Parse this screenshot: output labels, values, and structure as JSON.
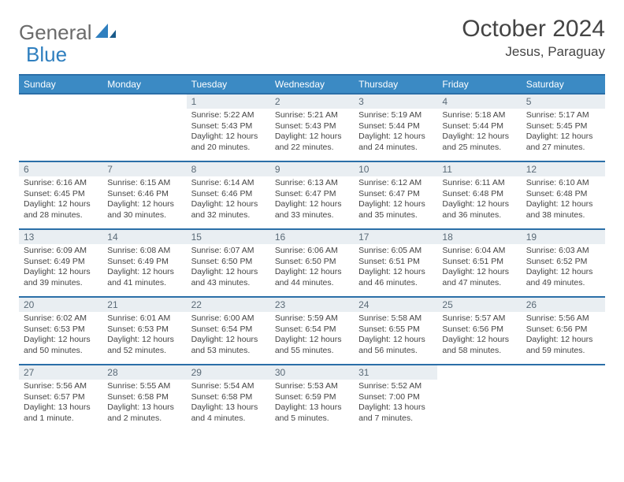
{
  "brand": {
    "part1": "General",
    "part2": "Blue"
  },
  "title": "October 2024",
  "location": "Jesus, Paraguay",
  "colors": {
    "header_bg": "#3b8ac4",
    "header_border": "#2b6fa8",
    "daynum_bg": "#e9eef2",
    "text": "#444444",
    "logo_gray": "#6b6b6b",
    "logo_blue": "#2f7fbf"
  },
  "weekdays": [
    "Sunday",
    "Monday",
    "Tuesday",
    "Wednesday",
    "Thursday",
    "Friday",
    "Saturday"
  ],
  "weeks": [
    [
      {
        "n": "",
        "sunrise": "",
        "sunset": "",
        "daylight": ""
      },
      {
        "n": "",
        "sunrise": "",
        "sunset": "",
        "daylight": ""
      },
      {
        "n": "1",
        "sunrise": "Sunrise: 5:22 AM",
        "sunset": "Sunset: 5:43 PM",
        "daylight": "Daylight: 12 hours and 20 minutes."
      },
      {
        "n": "2",
        "sunrise": "Sunrise: 5:21 AM",
        "sunset": "Sunset: 5:43 PM",
        "daylight": "Daylight: 12 hours and 22 minutes."
      },
      {
        "n": "3",
        "sunrise": "Sunrise: 5:19 AM",
        "sunset": "Sunset: 5:44 PM",
        "daylight": "Daylight: 12 hours and 24 minutes."
      },
      {
        "n": "4",
        "sunrise": "Sunrise: 5:18 AM",
        "sunset": "Sunset: 5:44 PM",
        "daylight": "Daylight: 12 hours and 25 minutes."
      },
      {
        "n": "5",
        "sunrise": "Sunrise: 5:17 AM",
        "sunset": "Sunset: 5:45 PM",
        "daylight": "Daylight: 12 hours and 27 minutes."
      }
    ],
    [
      {
        "n": "6",
        "sunrise": "Sunrise: 6:16 AM",
        "sunset": "Sunset: 6:45 PM",
        "daylight": "Daylight: 12 hours and 28 minutes."
      },
      {
        "n": "7",
        "sunrise": "Sunrise: 6:15 AM",
        "sunset": "Sunset: 6:46 PM",
        "daylight": "Daylight: 12 hours and 30 minutes."
      },
      {
        "n": "8",
        "sunrise": "Sunrise: 6:14 AM",
        "sunset": "Sunset: 6:46 PM",
        "daylight": "Daylight: 12 hours and 32 minutes."
      },
      {
        "n": "9",
        "sunrise": "Sunrise: 6:13 AM",
        "sunset": "Sunset: 6:47 PM",
        "daylight": "Daylight: 12 hours and 33 minutes."
      },
      {
        "n": "10",
        "sunrise": "Sunrise: 6:12 AM",
        "sunset": "Sunset: 6:47 PM",
        "daylight": "Daylight: 12 hours and 35 minutes."
      },
      {
        "n": "11",
        "sunrise": "Sunrise: 6:11 AM",
        "sunset": "Sunset: 6:48 PM",
        "daylight": "Daylight: 12 hours and 36 minutes."
      },
      {
        "n": "12",
        "sunrise": "Sunrise: 6:10 AM",
        "sunset": "Sunset: 6:48 PM",
        "daylight": "Daylight: 12 hours and 38 minutes."
      }
    ],
    [
      {
        "n": "13",
        "sunrise": "Sunrise: 6:09 AM",
        "sunset": "Sunset: 6:49 PM",
        "daylight": "Daylight: 12 hours and 39 minutes."
      },
      {
        "n": "14",
        "sunrise": "Sunrise: 6:08 AM",
        "sunset": "Sunset: 6:49 PM",
        "daylight": "Daylight: 12 hours and 41 minutes."
      },
      {
        "n": "15",
        "sunrise": "Sunrise: 6:07 AM",
        "sunset": "Sunset: 6:50 PM",
        "daylight": "Daylight: 12 hours and 43 minutes."
      },
      {
        "n": "16",
        "sunrise": "Sunrise: 6:06 AM",
        "sunset": "Sunset: 6:50 PM",
        "daylight": "Daylight: 12 hours and 44 minutes."
      },
      {
        "n": "17",
        "sunrise": "Sunrise: 6:05 AM",
        "sunset": "Sunset: 6:51 PM",
        "daylight": "Daylight: 12 hours and 46 minutes."
      },
      {
        "n": "18",
        "sunrise": "Sunrise: 6:04 AM",
        "sunset": "Sunset: 6:51 PM",
        "daylight": "Daylight: 12 hours and 47 minutes."
      },
      {
        "n": "19",
        "sunrise": "Sunrise: 6:03 AM",
        "sunset": "Sunset: 6:52 PM",
        "daylight": "Daylight: 12 hours and 49 minutes."
      }
    ],
    [
      {
        "n": "20",
        "sunrise": "Sunrise: 6:02 AM",
        "sunset": "Sunset: 6:53 PM",
        "daylight": "Daylight: 12 hours and 50 minutes."
      },
      {
        "n": "21",
        "sunrise": "Sunrise: 6:01 AM",
        "sunset": "Sunset: 6:53 PM",
        "daylight": "Daylight: 12 hours and 52 minutes."
      },
      {
        "n": "22",
        "sunrise": "Sunrise: 6:00 AM",
        "sunset": "Sunset: 6:54 PM",
        "daylight": "Daylight: 12 hours and 53 minutes."
      },
      {
        "n": "23",
        "sunrise": "Sunrise: 5:59 AM",
        "sunset": "Sunset: 6:54 PM",
        "daylight": "Daylight: 12 hours and 55 minutes."
      },
      {
        "n": "24",
        "sunrise": "Sunrise: 5:58 AM",
        "sunset": "Sunset: 6:55 PM",
        "daylight": "Daylight: 12 hours and 56 minutes."
      },
      {
        "n": "25",
        "sunrise": "Sunrise: 5:57 AM",
        "sunset": "Sunset: 6:56 PM",
        "daylight": "Daylight: 12 hours and 58 minutes."
      },
      {
        "n": "26",
        "sunrise": "Sunrise: 5:56 AM",
        "sunset": "Sunset: 6:56 PM",
        "daylight": "Daylight: 12 hours and 59 minutes."
      }
    ],
    [
      {
        "n": "27",
        "sunrise": "Sunrise: 5:56 AM",
        "sunset": "Sunset: 6:57 PM",
        "daylight": "Daylight: 13 hours and 1 minute."
      },
      {
        "n": "28",
        "sunrise": "Sunrise: 5:55 AM",
        "sunset": "Sunset: 6:58 PM",
        "daylight": "Daylight: 13 hours and 2 minutes."
      },
      {
        "n": "29",
        "sunrise": "Sunrise: 5:54 AM",
        "sunset": "Sunset: 6:58 PM",
        "daylight": "Daylight: 13 hours and 4 minutes."
      },
      {
        "n": "30",
        "sunrise": "Sunrise: 5:53 AM",
        "sunset": "Sunset: 6:59 PM",
        "daylight": "Daylight: 13 hours and 5 minutes."
      },
      {
        "n": "31",
        "sunrise": "Sunrise: 5:52 AM",
        "sunset": "Sunset: 7:00 PM",
        "daylight": "Daylight: 13 hours and 7 minutes."
      },
      {
        "n": "",
        "sunrise": "",
        "sunset": "",
        "daylight": ""
      },
      {
        "n": "",
        "sunrise": "",
        "sunset": "",
        "daylight": ""
      }
    ]
  ]
}
